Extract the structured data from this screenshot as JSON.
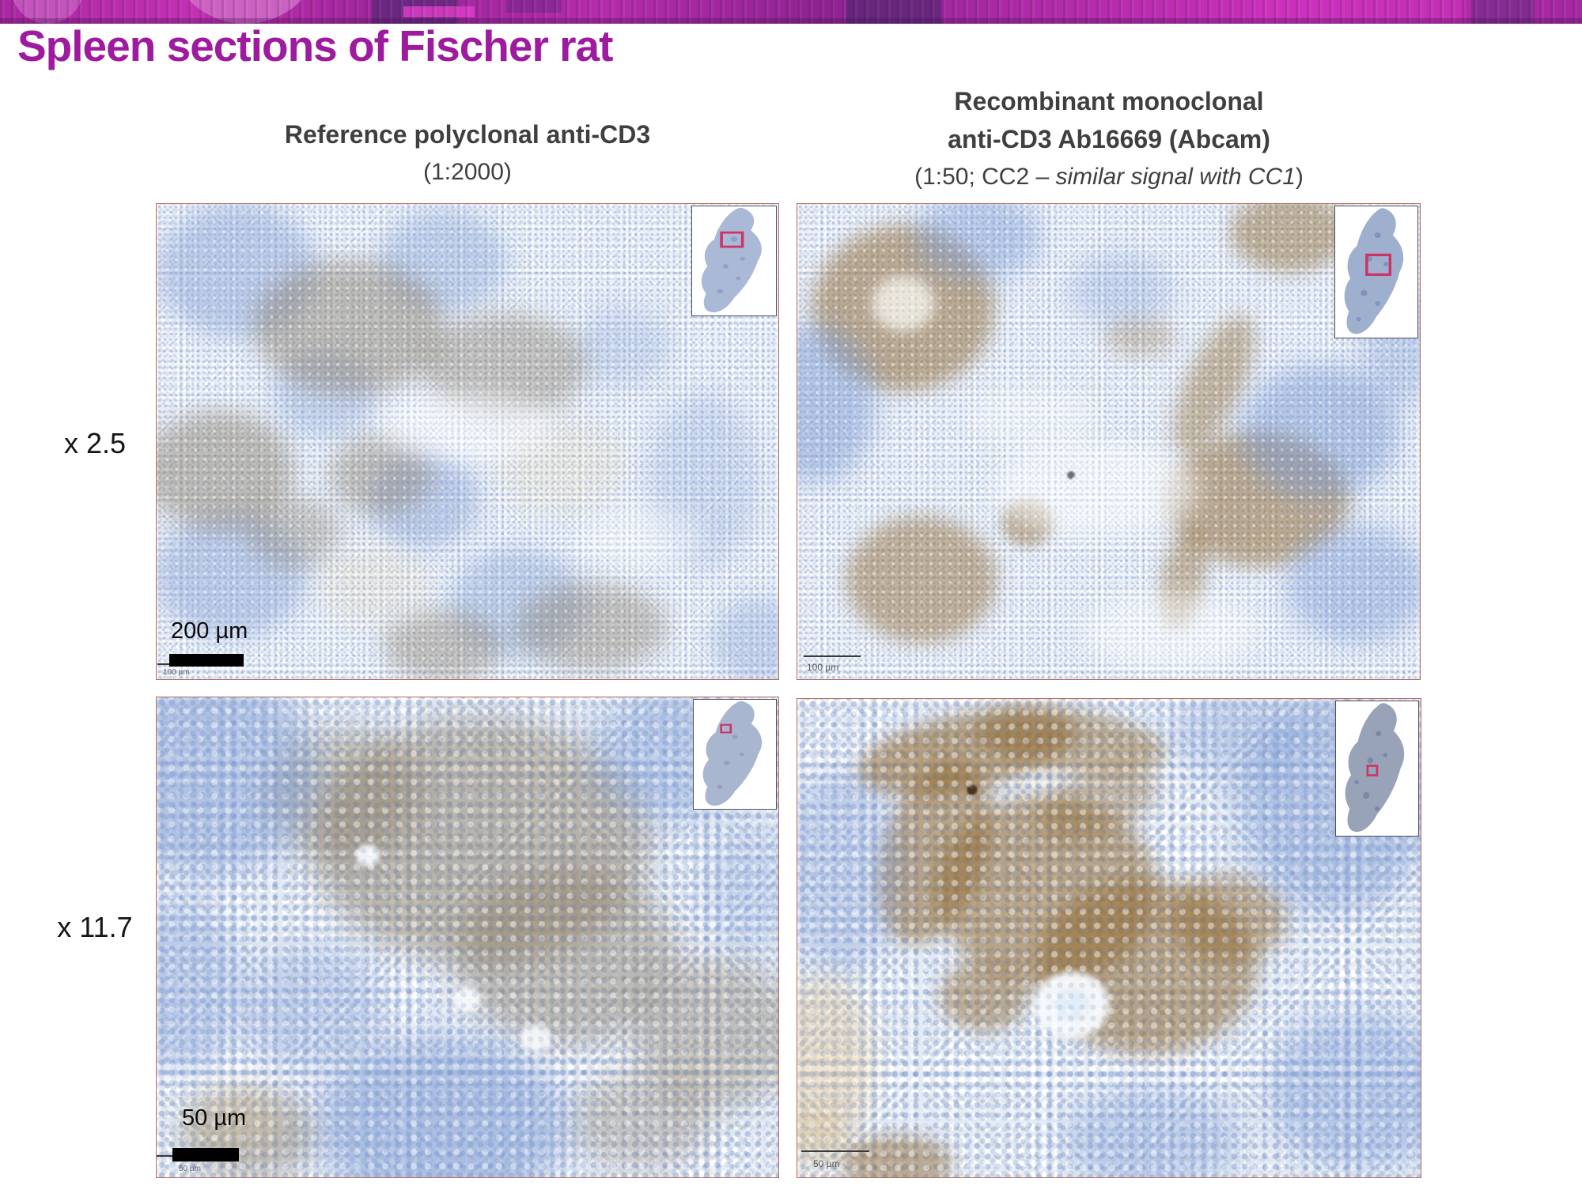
{
  "title": "Spleen sections of Fischer rat",
  "headers": {
    "left": {
      "line1": "Reference polyclonal anti-CD3",
      "line2": "(1:2000)"
    },
    "right": {
      "line1": "Recombinant monoclonal",
      "line2": "anti-CD3 Ab16669 (Abcam)",
      "line3_prefix": "(1:50; CC2 – ",
      "line3_italic": "similar signal with CC1",
      "line3_suffix": ")"
    }
  },
  "row_labels": {
    "row1": "x 2.5",
    "row2": "x 11.7"
  },
  "panels": {
    "top_left": {
      "scale_label": "200 µm",
      "watermark": "100 µm"
    },
    "top_right": {
      "watermark": "100 µm"
    },
    "bottom_left": {
      "scale_label": "50 µm",
      "watermark": "50 µm"
    },
    "bottom_right": {
      "watermark": "50 µm"
    }
  },
  "colors": {
    "title_text": "#9e1a9e",
    "header_text": "#3f3f3f",
    "panel_border": "#b96a57",
    "banner_magenta": "#b32aa6",
    "ihc_brown": "#8f6932",
    "hematoxylin_blue": "#84a2d8",
    "roi_box": "#cc3366"
  }
}
